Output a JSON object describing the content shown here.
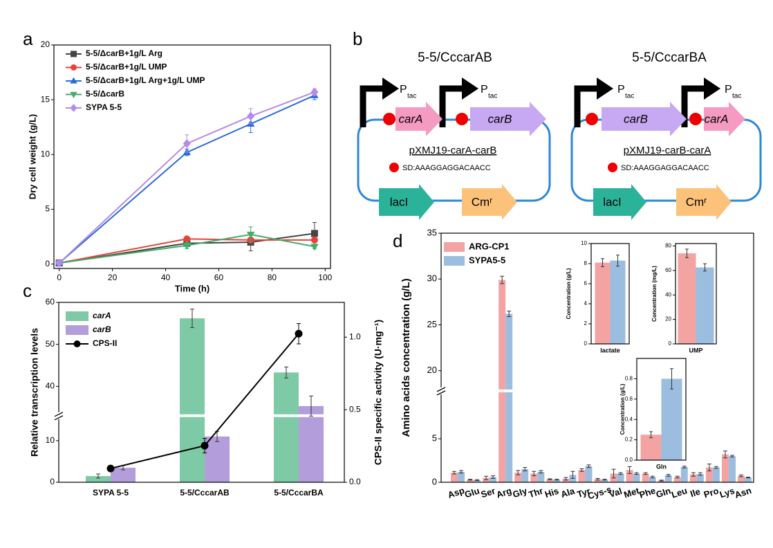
{
  "panel_labels": [
    "a",
    "b",
    "c",
    "d"
  ],
  "diagram": {
    "constructs": [
      {
        "title": "5-5/CccarAB",
        "promoter": "P",
        "promoter_sub": "tac",
        "genes": [
          "carA",
          "carB"
        ],
        "plasmid": "pXMJ19-carA-carB",
        "sd": "SD:AAAGGAGGACAACC",
        "markers": [
          "lacI",
          "Cmʳ"
        ]
      },
      {
        "title": "5-5/CccarBA",
        "promoter": "P",
        "promoter_sub": "tac",
        "genes": [
          "carB",
          "carA"
        ],
        "plasmid": "pXMJ19-carB-carA",
        "sd": "SD:AAAGGAGGACAACC",
        "markers": [
          "lacI",
          "Cmʳ"
        ]
      }
    ]
  },
  "chart_data": [
    {
      "type": "line",
      "xlabel": "Time (h)",
      "ylabel": "Dry cell weight (g/L)",
      "legend": "upper left",
      "x": [
        0,
        48,
        72,
        96
      ],
      "xlim": [
        -2,
        102
      ],
      "xticks": [
        0,
        20,
        40,
        60,
        80,
        100
      ],
      "ylim": [
        -0.4,
        20
      ],
      "yticks": [
        0,
        5,
        10,
        15,
        20
      ],
      "series": [
        {
          "name": "5-5/ΔcarB+1g/L Arg",
          "color": "#454545",
          "marker": "square",
          "values": [
            0.1,
            1.9,
            2.0,
            2.8
          ],
          "errors": [
            0,
            0.3,
            0.8,
            1.0
          ]
        },
        {
          "name": "5-5/ΔcarB+1g/L UMP",
          "color": "#e8423a",
          "marker": "circle",
          "values": [
            0.1,
            2.3,
            2.2,
            2.2
          ],
          "errors": [
            0,
            0.2,
            0.2,
            0.2
          ]
        },
        {
          "name": "5-5/ΔcarB+1g/L Arg+1g/L UMP",
          "color": "#2a6ad9",
          "marker": "triangle-up",
          "values": [
            0.1,
            10.2,
            12.8,
            15.4
          ],
          "errors": [
            0,
            0.3,
            0.8,
            0.4
          ]
        },
        {
          "name": "5-5/ΔcarB",
          "color": "#41ad6b",
          "marker": "triangle-down",
          "values": [
            0.1,
            1.7,
            2.7,
            1.6
          ],
          "errors": [
            0,
            0.3,
            0.7,
            0.2
          ]
        },
        {
          "name": "SYPA 5-5",
          "color": "#b58ae8",
          "marker": "diamond",
          "values": [
            0.1,
            11.0,
            13.5,
            15.7
          ],
          "errors": [
            0,
            0.8,
            0.7,
            0.3
          ]
        }
      ]
    },
    {
      "type": "bar",
      "ylabel": "Relative transcription levels",
      "y2label": "CPS-II specific activity (U·mg⁻¹)",
      "legend": "upper left",
      "categories": [
        "SYPA 5-5",
        "5-5/CccarAB",
        "5-5/CccarBA"
      ],
      "ylim": [
        0,
        60
      ],
      "ybreak": [
        16,
        33
      ],
      "yticks": [
        0,
        10,
        40,
        50,
        60
      ],
      "y2lim": [
        0,
        1.24
      ],
      "y2ticks": [
        {
          "value": 0,
          "label": "0.0"
        },
        0.5,
        {
          "value": 1,
          "label": "1.0"
        }
      ],
      "series": [
        {
          "name": "carA",
          "color": "#7fcaa6",
          "values": [
            1.5,
            56.2,
            43.3
          ],
          "errors": [
            0.5,
            2.2,
            1.3
          ]
        },
        {
          "name": "carB",
          "color": "#b39ddb",
          "values": [
            3.5,
            11.0,
            35.3
          ],
          "errors": [
            0.5,
            1.2,
            2.4
          ]
        },
        {
          "name": "CPS-II",
          "color": "#000000",
          "type": "line",
          "axis": "y2",
          "values": [
            0.095,
            0.252,
            1.024
          ],
          "errors": [
            0.02,
            0.05,
            0.07
          ]
        }
      ]
    },
    {
      "type": "bar",
      "ylabel": "Amino acids concentration (g/L)",
      "legend": "upper left",
      "categories": [
        "Asp",
        "Glu",
        "Ser",
        "Arg",
        "Gly",
        "Thr",
        "His",
        "Ala",
        "Tyr",
        "Cys-s",
        "Val",
        "Met",
        "Phe",
        "Gln",
        "Leu",
        "Ile",
        "Pro",
        "Lys",
        "Asn"
      ],
      "ylim": [
        0,
        35
      ],
      "ybreak": [
        10.5,
        17.8
      ],
      "yticks": [
        0,
        5,
        20,
        25,
        30,
        35
      ],
      "series": [
        {
          "name": "ARG-CP1",
          "color": "#f4a3a3",
          "values": [
            1.1,
            0.3,
            0.5,
            29.9,
            1.1,
            1.0,
            0.35,
            0.4,
            1.4,
            0.35,
            1.0,
            1.4,
            1.0,
            0.2,
            0.6,
            0.9,
            1.7,
            3.2,
            0.75
          ],
          "errors": [
            0.15,
            0.05,
            0.2,
            0.4,
            0.25,
            0.25,
            0.05,
            0.15,
            0.15,
            0.1,
            0.5,
            0.4,
            0.1,
            0.05,
            0.1,
            0.2,
            0.4,
            0.4,
            0.1
          ]
        },
        {
          "name": "SYPA5-5",
          "color": "#9bbde0",
          "values": [
            1.2,
            0.25,
            0.6,
            26.2,
            1.5,
            1.2,
            0.3,
            0.85,
            1.85,
            0.3,
            1.0,
            1.0,
            0.6,
            0.8,
            1.75,
            0.95,
            1.7,
            3.0,
            0.55
          ],
          "errors": [
            0.15,
            0.05,
            0.15,
            0.3,
            0.2,
            0.15,
            0.05,
            0.4,
            0.15,
            0.05,
            0.1,
            0.1,
            0.1,
            0.1,
            0.1,
            0.15,
            0.1,
            0.1,
            0.05
          ]
        }
      ]
    },
    {
      "type": "bar",
      "ylabel": "Concentration (g/L)",
      "categories": [
        "lactate"
      ],
      "ylim": [
        0,
        10
      ],
      "yticks": [
        0,
        2,
        4,
        6,
        8,
        10
      ],
      "series": [
        {
          "color": "#f4a3a3",
          "values": [
            8.1
          ],
          "errors": [
            0.4
          ]
        },
        {
          "color": "#9bbde0",
          "values": [
            8.3
          ],
          "errors": [
            0.55
          ]
        }
      ]
    },
    {
      "type": "bar",
      "ylabel": "Concentration (mg/L)",
      "categories": [
        "UMP"
      ],
      "ylim": [
        0,
        82
      ],
      "yticks": [
        0,
        20,
        40,
        60,
        80
      ],
      "series": [
        {
          "color": "#f4a3a3",
          "values": [
            74
          ],
          "errors": [
            3.5
          ]
        },
        {
          "color": "#9bbde0",
          "values": [
            62.5
          ],
          "errors": [
            3
          ]
        }
      ]
    },
    {
      "type": "bar",
      "ylabel": "Concentration (g/L)",
      "categories": [
        "Gln"
      ],
      "ylim": [
        0,
        1.0
      ],
      "yticks": [
        {
          "value": 0,
          "label": "0.0"
        },
        0.2,
        0.4,
        0.6,
        0.8
      ],
      "series": [
        {
          "color": "#f4a3a3",
          "values": [
            0.25
          ],
          "errors": [
            0.03
          ]
        },
        {
          "color": "#9bbde0",
          "values": [
            0.8
          ],
          "errors": [
            0.1
          ]
        }
      ]
    }
  ]
}
